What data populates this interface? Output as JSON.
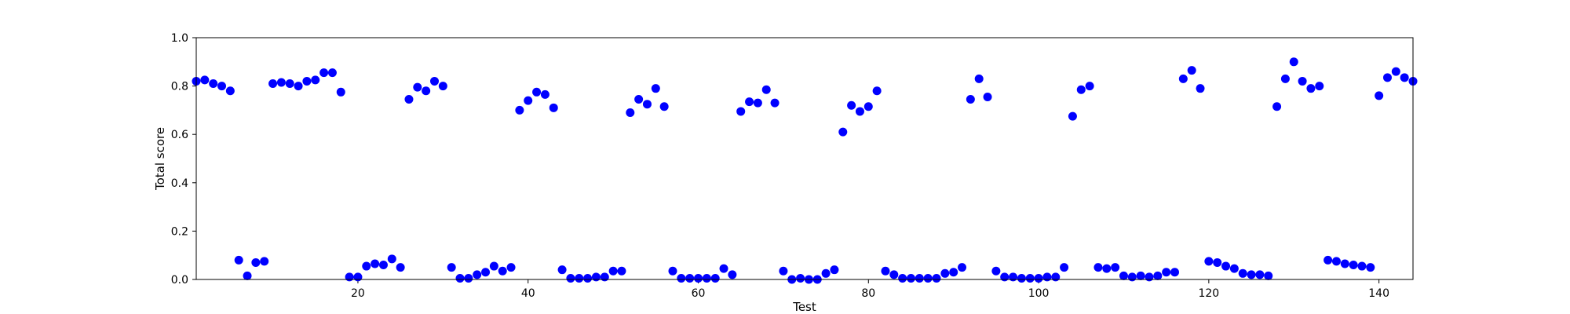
{
  "chart_data": {
    "type": "scatter",
    "title": "",
    "xlabel": "Test",
    "ylabel": "Total score",
    "xlim": [
      1,
      144
    ],
    "ylim": [
      0.0,
      1.0
    ],
    "xticks": [
      20,
      40,
      60,
      80,
      100,
      120,
      140
    ],
    "yticks": [
      0.0,
      0.2,
      0.4,
      0.6,
      0.8,
      1.0
    ],
    "ytick_labels": [
      "0.0",
      "0.2",
      "0.4",
      "0.6",
      "0.8",
      "1.0"
    ],
    "grid": false,
    "legend": "none",
    "color": "#0000ff",
    "series": [
      {
        "x": [
          1,
          2,
          3,
          4,
          5,
          6,
          7,
          8,
          9,
          10,
          11,
          12,
          13,
          14,
          15,
          16,
          17,
          18,
          19,
          20,
          21,
          22,
          23,
          24,
          25,
          26,
          27,
          28,
          29,
          30,
          31,
          32,
          33,
          34,
          35,
          36,
          37,
          38,
          39,
          40,
          41,
          42,
          43,
          44,
          45,
          46,
          47,
          48,
          49,
          50,
          51,
          52,
          53,
          54,
          55,
          56,
          57,
          58,
          59,
          60,
          61,
          62,
          63,
          64,
          65,
          66,
          67,
          68,
          69,
          70,
          71,
          72,
          73,
          74,
          75,
          76,
          77,
          78,
          79,
          80,
          81,
          82,
          83,
          84,
          85,
          86,
          87,
          88,
          89,
          90,
          91,
          92,
          93,
          94,
          95,
          96,
          97,
          98,
          99,
          100,
          101,
          102,
          103,
          104,
          105,
          106,
          107,
          108,
          109,
          110,
          111,
          112,
          113,
          114,
          115,
          116,
          117,
          118,
          119,
          120,
          121,
          122,
          123,
          124,
          125,
          126,
          127,
          128,
          129,
          130,
          131,
          132,
          133,
          134,
          135,
          136,
          137,
          138,
          139,
          140,
          141,
          142,
          143,
          144
        ],
        "values": [
          0.82,
          0.825,
          0.81,
          0.8,
          0.78,
          0.08,
          0.015,
          0.07,
          0.075,
          0.81,
          0.815,
          0.81,
          0.8,
          0.82,
          0.825,
          0.855,
          0.855,
          0.775,
          0.01,
          0.01,
          0.055,
          0.065,
          0.06,
          0.085,
          0.05,
          0.745,
          0.795,
          0.78,
          0.82,
          0.8,
          0.05,
          0.005,
          0.005,
          0.02,
          0.03,
          0.055,
          0.035,
          0.05,
          0.7,
          0.74,
          0.775,
          0.765,
          0.71,
          0.04,
          0.005,
          0.005,
          0.005,
          0.01,
          0.01,
          0.035,
          0.035,
          0.69,
          0.745,
          0.725,
          0.79,
          0.715,
          0.035,
          0.005,
          0.005,
          0.005,
          0.005,
          0.005,
          0.045,
          0.02,
          0.695,
          0.735,
          0.73,
          0.785,
          0.73,
          0.035,
          0.0,
          0.005,
          0.0,
          0.0,
          0.025,
          0.04,
          0.61,
          0.72,
          0.695,
          0.715,
          0.78,
          0.035,
          0.02,
          0.005,
          0.005,
          0.005,
          0.005,
          0.005,
          0.025,
          0.03,
          0.05,
          0.745,
          0.83,
          0.755,
          0.035,
          0.01,
          0.01,
          0.005,
          0.005,
          0.005,
          0.01,
          0.01,
          0.05,
          0.675,
          0.785,
          0.8,
          0.05,
          0.045,
          0.05,
          0.015,
          0.01,
          0.015,
          0.01,
          0.015,
          0.03,
          0.03,
          0.83,
          0.865,
          0.79,
          0.075,
          0.07,
          0.055,
          0.045,
          0.025,
          0.02,
          0.02,
          0.015,
          0.715,
          0.83,
          0.9,
          0.82,
          0.79,
          0.8,
          0.08,
          0.075,
          0.065,
          0.06,
          0.055,
          0.05,
          0.76,
          0.835,
          0.86,
          0.835,
          0.82
        ]
      }
    ]
  }
}
